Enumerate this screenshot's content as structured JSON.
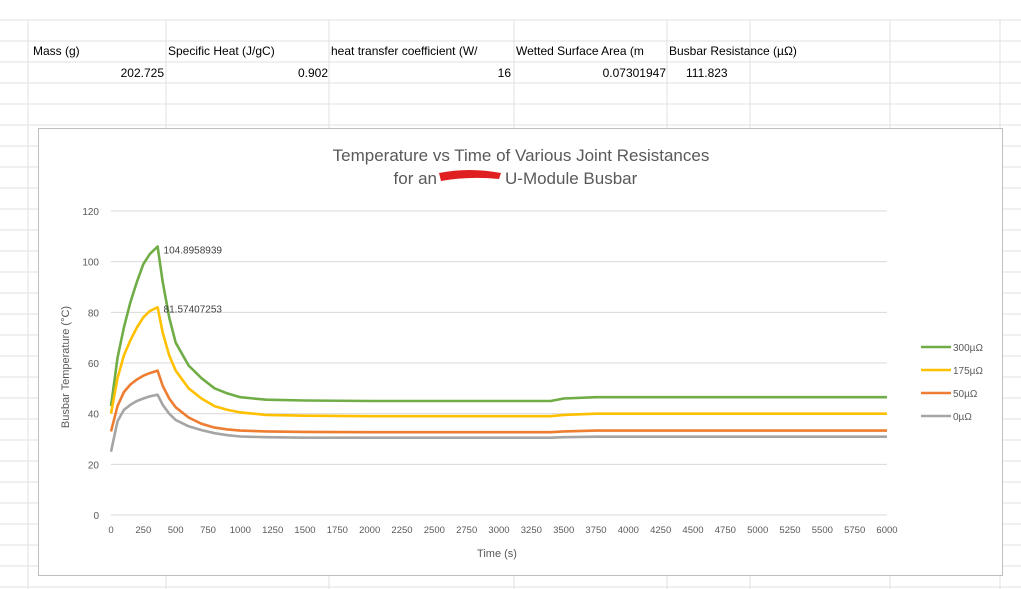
{
  "sheet": {
    "headers": [
      "Mass (g)",
      "Specific Heat (J/gC)",
      "heat transfer coefficient (W/",
      "Wetted Surface Area (m",
      "Busbar Resistance (µΩ)"
    ],
    "values": [
      "202.725",
      "0.902",
      "16",
      "0.07301947",
      "111.823"
    ]
  },
  "chart_data": {
    "type": "line",
    "title_line1": "Temperature vs Time of Various Joint Resistances",
    "title_line2": "for an",
    "title_line2_rest": "U-Module Busbar",
    "xlabel": "Time (s)",
    "ylabel": "Busbar Temperature (°C)",
    "xlim": [
      0,
      6000
    ],
    "ylim": [
      0,
      120
    ],
    "xticks": [
      0,
      250,
      500,
      750,
      1000,
      1250,
      1500,
      1750,
      2000,
      2250,
      2500,
      2750,
      3000,
      3250,
      3500,
      3750,
      4000,
      4250,
      4500,
      4750,
      5000,
      5250,
      5500,
      5750,
      6000
    ],
    "yticks": [
      0,
      20,
      40,
      60,
      80,
      100,
      120
    ],
    "grid": "horizontal",
    "legend_position": "right",
    "annotations": [
      {
        "text": "104.8958939",
        "x": 360,
        "y": 104.9
      },
      {
        "text": "81.57407253",
        "x": 360,
        "y": 81.6
      }
    ],
    "series": [
      {
        "name": "300µΩ",
        "color": "#70ad47",
        "x": [
          0,
          50,
          100,
          150,
          200,
          250,
          300,
          360,
          400,
          450,
          500,
          600,
          700,
          800,
          900,
          1000,
          1200,
          1500,
          2000,
          2500,
          3000,
          3400,
          3500,
          3750,
          4000,
          5000,
          6000
        ],
        "y": [
          43,
          62,
          74,
          84,
          92,
          99,
          103,
          106,
          92,
          78,
          68,
          59,
          54,
          50,
          48,
          46.5,
          45.5,
          45.2,
          45,
          45,
          45,
          45,
          46,
          46.5,
          46.5,
          46.5,
          46.5
        ]
      },
      {
        "name": "175µΩ",
        "color": "#ffc000",
        "x": [
          0,
          50,
          100,
          150,
          200,
          250,
          300,
          360,
          400,
          450,
          500,
          600,
          700,
          800,
          900,
          1000,
          1200,
          1500,
          2000,
          2500,
          3000,
          3400,
          3500,
          3750,
          4000,
          5000,
          6000
        ],
        "y": [
          40,
          54,
          63,
          69,
          74,
          78,
          80.5,
          82,
          72,
          63,
          57,
          50,
          46,
          43,
          41.5,
          40.5,
          39.5,
          39.2,
          39,
          39,
          39,
          39,
          39.5,
          40,
          40,
          40,
          40
        ]
      },
      {
        "name": "50µΩ",
        "color": "#ed7d31",
        "x": [
          0,
          50,
          100,
          150,
          200,
          250,
          300,
          360,
          400,
          450,
          500,
          600,
          700,
          800,
          900,
          1000,
          1200,
          1500,
          2000,
          2500,
          3000,
          3400,
          3500,
          3750,
          4000,
          5000,
          6000
        ],
        "y": [
          33,
          43,
          48.5,
          51.5,
          53.5,
          55,
          56,
          57,
          51,
          46,
          42.5,
          38.5,
          36,
          34.5,
          33.8,
          33.3,
          33,
          32.8,
          32.7,
          32.7,
          32.7,
          32.7,
          33,
          33.3,
          33.3,
          33.3,
          33.3
        ]
      },
      {
        "name": "0µΩ",
        "color": "#a5a5a5",
        "x": [
          0,
          50,
          100,
          150,
          200,
          250,
          300,
          360,
          400,
          450,
          500,
          600,
          700,
          800,
          900,
          1000,
          1200,
          1500,
          2000,
          2500,
          3000,
          3400,
          3500,
          3750,
          4000,
          5000,
          6000
        ],
        "y": [
          25,
          37,
          41.5,
          43.5,
          45,
          46,
          46.8,
          47.5,
          43.5,
          40,
          37.5,
          35,
          33.5,
          32.3,
          31.5,
          31,
          30.7,
          30.5,
          30.5,
          30.5,
          30.5,
          30.5,
          30.7,
          30.9,
          30.9,
          30.9,
          30.9
        ]
      }
    ]
  }
}
